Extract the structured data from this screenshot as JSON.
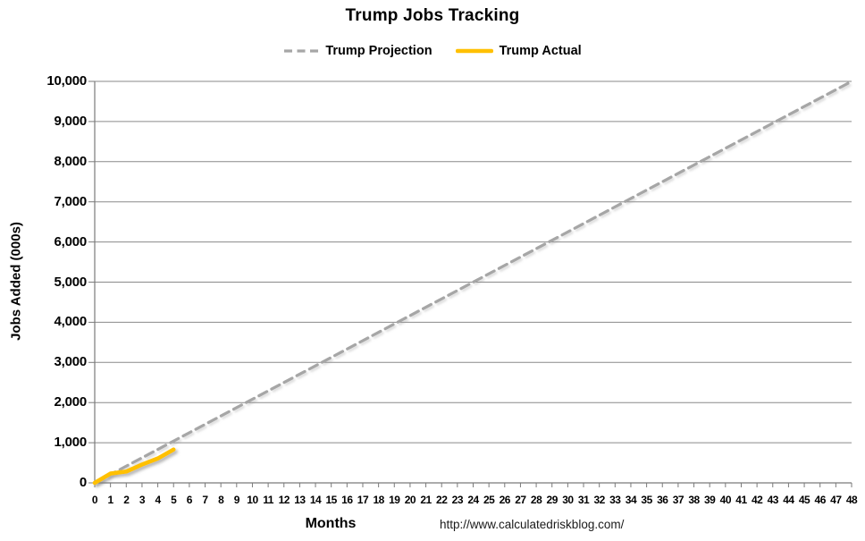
{
  "title": "Trump Jobs Tracking",
  "legend": [
    {
      "label": "Trump Projection",
      "color": "#A6A6A6",
      "style": "dashed"
    },
    {
      "label": "Trump Actual",
      "color": "#FFC000",
      "style": "solid"
    }
  ],
  "footer": {
    "url": "http://www.calculatedriskblog.com/"
  },
  "colors": {
    "grid": "#8a8a8a",
    "axis": "#7a7a7a",
    "text": "#000000",
    "projection": "#A6A6A6",
    "actual": "#FFC000"
  },
  "chart_data": {
    "type": "line",
    "title": "Trump Jobs Tracking",
    "xlabel": "Months",
    "ylabel": "Jobs Added (000s)",
    "xlim": [
      0,
      48
    ],
    "ylim": [
      0,
      10000
    ],
    "grid": "horizontal",
    "legend_position": "top-center",
    "x_tick_labels": [
      "0",
      "1",
      "2",
      "3",
      "4",
      "5",
      "6",
      "7",
      "8",
      "9",
      "10",
      "11",
      "12",
      "13",
      "14",
      "15",
      "16",
      "17",
      "18",
      "19",
      "20",
      "21",
      "22",
      "23",
      "24",
      "25",
      "26",
      "27",
      "28",
      "29",
      "30",
      "31",
      "32",
      "33",
      "34",
      "35",
      "36",
      "37",
      "38",
      "39",
      "40",
      "41",
      "42",
      "43",
      "44",
      "45",
      "46",
      "47",
      "48"
    ],
    "y_ticks": [
      0,
      1000,
      2000,
      3000,
      4000,
      5000,
      6000,
      7000,
      8000,
      9000,
      10000
    ],
    "y_tick_labels": [
      "0",
      "1,000",
      "2,000",
      "3,000",
      "4,000",
      "5,000",
      "6,000",
      "7,000",
      "8,000",
      "9,000",
      "10,000"
    ],
    "series": [
      {
        "name": "Trump Projection",
        "color": "#A6A6A6",
        "style": "dashed",
        "x": [
          0,
          48
        ],
        "y": [
          0,
          10000
        ]
      },
      {
        "name": "Trump Actual",
        "color": "#FFC000",
        "style": "solid",
        "x": [
          0,
          1,
          2,
          3,
          4,
          5
        ],
        "y": [
          0,
          232,
          282,
          456,
          608,
          830
        ]
      }
    ]
  }
}
